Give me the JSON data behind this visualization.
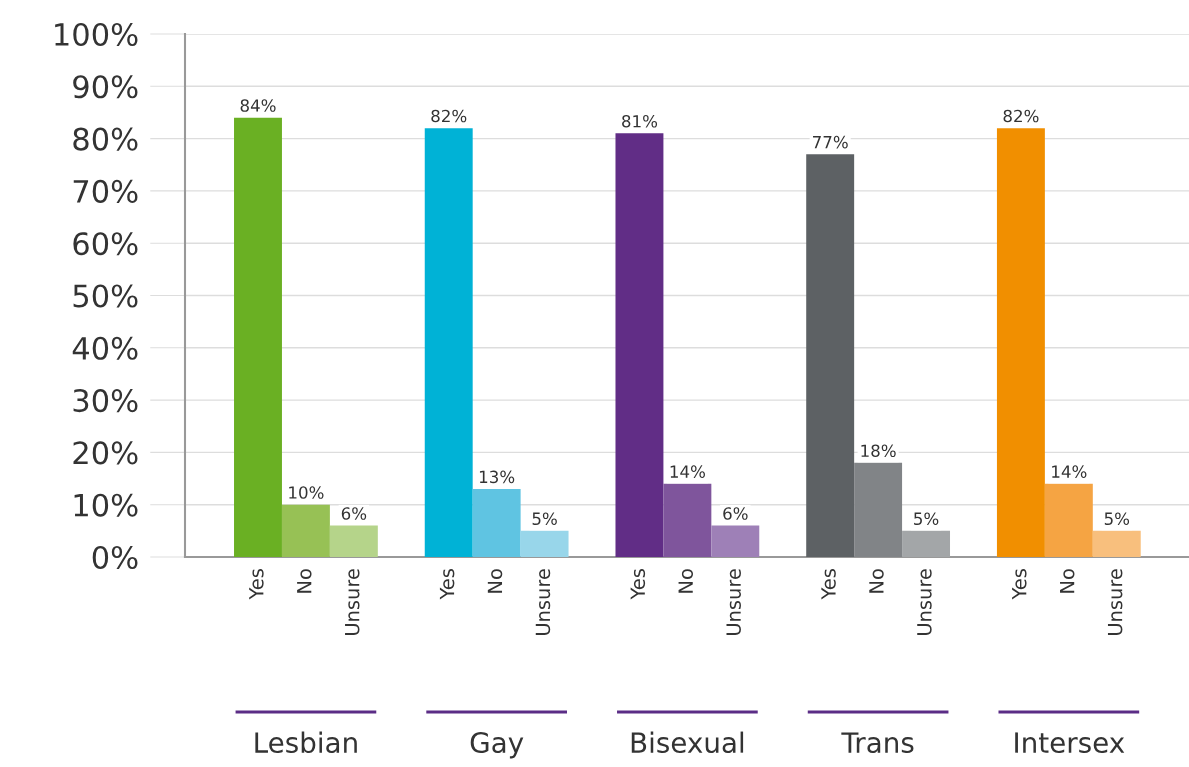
{
  "chart_data": {
    "type": "bar",
    "categories": [
      "Lesbian",
      "Gay",
      "Bisexual",
      "Trans",
      "Intersex"
    ],
    "series": [
      {
        "name": "Yes",
        "values": [
          84,
          82,
          81,
          77,
          82
        ],
        "value_labels": [
          "84%",
          "82%",
          "81%",
          "77%",
          "82%"
        ],
        "colors": [
          "#6ab023",
          "#00b2d6",
          "#612d86",
          "#5d6164",
          "#f18f00"
        ]
      },
      {
        "name": "No",
        "values": [
          10,
          13,
          14,
          18,
          14
        ],
        "value_labels": [
          "10%",
          "13%",
          "14%",
          "18%",
          "14%"
        ],
        "colors": [
          "#97c155",
          "#5fc4e2",
          "#7f559c",
          "#818487",
          "#f5a443"
        ]
      },
      {
        "name": "Unsure",
        "values": [
          6,
          5,
          6,
          5,
          5
        ],
        "value_labels": [
          "6%",
          "5%",
          "6%",
          "5%",
          "5%"
        ],
        "colors": [
          "#b5d48a",
          "#98d6ea",
          "#9e80b7",
          "#a3a6a8",
          "#f8bf7d"
        ]
      }
    ],
    "ylim": [
      0,
      100
    ],
    "yticks": [
      {
        "value": 0,
        "label": "0%"
      },
      {
        "value": 10,
        "label": "10%"
      },
      {
        "value": 20,
        "label": "20%"
      },
      {
        "value": 30,
        "label": "30%"
      },
      {
        "value": 40,
        "label": "40%"
      },
      {
        "value": 50,
        "label": "50%"
      },
      {
        "value": 60,
        "label": "60%"
      },
      {
        "value": 70,
        "label": "70%"
      },
      {
        "value": 80,
        "label": "80%"
      },
      {
        "value": 90,
        "label": "90%"
      },
      {
        "value": 100,
        "label": "100%"
      }
    ],
    "grid": "y",
    "legend": false
  }
}
